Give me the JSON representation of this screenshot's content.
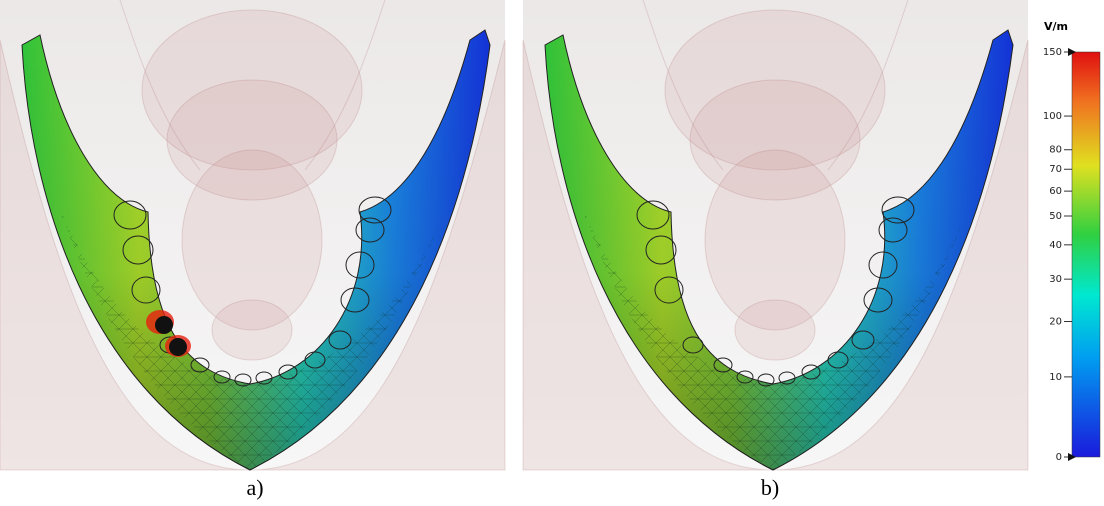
{
  "panels": [
    {
      "label": "a)"
    },
    {
      "label": "b)"
    }
  ],
  "colorbar": {
    "unit": "V/m",
    "lim": [
      0,
      150
    ],
    "ticks": [
      0,
      10,
      20,
      30,
      40,
      50,
      60,
      70,
      80,
      100,
      150
    ]
  }
}
